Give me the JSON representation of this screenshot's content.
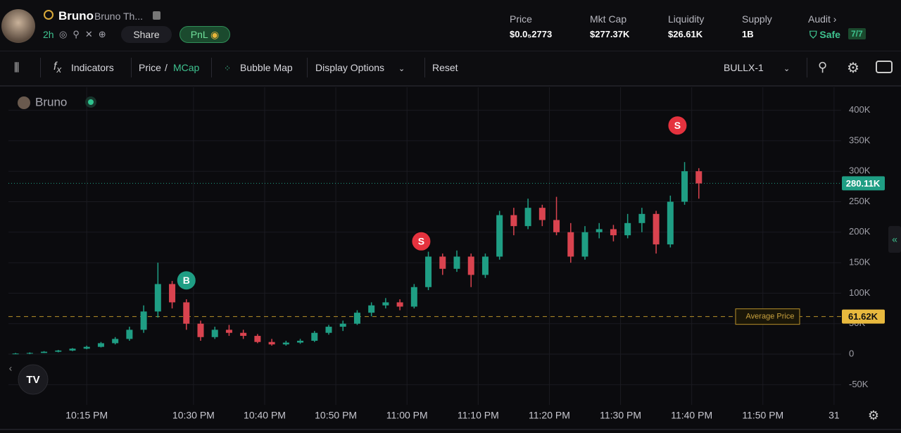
{
  "header": {
    "name": "Bruno",
    "full_name": "Bruno Th...",
    "age": "2h",
    "share": "Share",
    "pnl": "PnL"
  },
  "stats": [
    {
      "label": "Price",
      "value": "$0.0₅2773"
    },
    {
      "label": "Mkt Cap",
      "value": "$277.37K"
    },
    {
      "label": "Liquidity",
      "value": "$26.61K"
    },
    {
      "label": "Supply",
      "value": "1B"
    }
  ],
  "audit": {
    "label": "Audit",
    "status": "Safe",
    "score": "7/7"
  },
  "toolbar": {
    "indicators": "Indicators",
    "price": "Price",
    "separator": "/",
    "mcap": "MCap",
    "bubble_map": "Bubble Map",
    "display_options": "Display Options",
    "reset": "Reset",
    "source": "BULLX-1"
  },
  "chart_data": {
    "type": "candlestick",
    "legend": "Bruno",
    "up_color": "#1f9e84",
    "down_color": "#d9434f",
    "grid": true,
    "x": [
      "10:05 PM",
      "10:07 PM",
      "10:09 PM",
      "10:11 PM",
      "10:13 PM",
      "10:15 PM",
      "10:17 PM",
      "10:19 PM",
      "10:21 PM",
      "10:23 PM",
      "10:25 PM",
      "10:27 PM",
      "10:29 PM",
      "10:31 PM",
      "10:33 PM",
      "10:35 PM",
      "10:37 PM",
      "10:39 PM",
      "10:41 PM",
      "10:43 PM",
      "10:45 PM",
      "10:47 PM",
      "10:49 PM",
      "10:51 PM",
      "10:53 PM",
      "10:55 PM",
      "10:57 PM",
      "10:59 PM",
      "11:01 PM",
      "11:03 PM",
      "11:05 PM",
      "11:07 PM",
      "11:09 PM",
      "11:11 PM",
      "11:13 PM",
      "11:15 PM",
      "11:17 PM",
      "11:19 PM",
      "11:21 PM",
      "11:23 PM",
      "11:25 PM",
      "11:27 PM",
      "11:29 PM",
      "11:31 PM",
      "11:33 PM",
      "11:35 PM",
      "11:37 PM",
      "11:39 PM",
      "11:41 PM"
    ],
    "open": [
      0,
      1000,
      2000,
      4000,
      6000,
      9000,
      12000,
      18000,
      25000,
      40000,
      70000,
      115000,
      85000,
      50000,
      28000,
      40000,
      35000,
      30000,
      20000,
      16000,
      19000,
      22000,
      35000,
      45000,
      50000,
      68000,
      80000,
      85000,
      78000,
      110000,
      160000,
      140000,
      160000,
      130000,
      160000,
      228000,
      210000,
      240000,
      220000,
      200000,
      160000,
      200000,
      205000,
      195000,
      215000,
      230000,
      180000,
      250000,
      300000
    ],
    "high": [
      2000,
      3000,
      5000,
      7000,
      10000,
      14000,
      20000,
      28000,
      45000,
      80000,
      150000,
      120000,
      90000,
      55000,
      45000,
      48000,
      40000,
      33000,
      25000,
      22000,
      25000,
      38000,
      48000,
      55000,
      72000,
      85000,
      92000,
      90000,
      115000,
      168000,
      165000,
      170000,
      165000,
      165000,
      235000,
      240000,
      255000,
      245000,
      258000,
      215000,
      210000,
      215000,
      212000,
      230000,
      240000,
      235000,
      260000,
      315000,
      305000
    ],
    "low": [
      0,
      0,
      2000,
      3000,
      5000,
      8000,
      11000,
      16000,
      22000,
      35000,
      60000,
      75000,
      40000,
      22000,
      25000,
      30000,
      25000,
      18000,
      14000,
      14000,
      17000,
      20000,
      32000,
      38000,
      48000,
      62000,
      75000,
      72000,
      75000,
      105000,
      130000,
      135000,
      110000,
      125000,
      155000,
      195000,
      205000,
      210000,
      195000,
      150000,
      155000,
      190000,
      185000,
      190000,
      200000,
      165000,
      175000,
      245000,
      255000
    ],
    "close": [
      1000,
      2000,
      4000,
      6000,
      9000,
      12000,
      18000,
      25000,
      40000,
      70000,
      115000,
      85000,
      50000,
      28000,
      40000,
      35000,
      30000,
      20000,
      16000,
      19000,
      22000,
      35000,
      45000,
      50000,
      68000,
      80000,
      85000,
      78000,
      110000,
      160000,
      140000,
      160000,
      130000,
      160000,
      228000,
      210000,
      240000,
      220000,
      200000,
      160000,
      200000,
      205000,
      195000,
      215000,
      230000,
      180000,
      250000,
      300000,
      280000
    ],
    "ylim": [
      -75000,
      430000
    ],
    "yticks": [
      {
        "value": -50000,
        "label": "-50K"
      },
      0,
      {
        "value": 50000,
        "label": "50K"
      },
      {
        "value": 100000,
        "label": "100K"
      },
      {
        "value": 150000,
        "label": "150K"
      },
      {
        "value": 200000,
        "label": "200K"
      },
      {
        "value": 250000,
        "label": "250K"
      },
      {
        "value": 300000,
        "label": "300K"
      },
      {
        "value": 350000,
        "label": "350K"
      },
      {
        "value": 400000,
        "label": "400K"
      }
    ],
    "xlim": [
      "10:04 PM",
      "12:01 AM"
    ],
    "xticks": [
      "10:15 PM",
      "10:30 PM",
      "10:40 PM",
      "10:50 PM",
      "11:00 PM",
      "11:10 PM",
      "11:20 PM",
      "11:30 PM",
      "11:40 PM",
      "11:50 PM",
      {
        "value": "12:00 AM",
        "label": "31"
      }
    ],
    "current_price": {
      "value": 280110,
      "label": "280.11K"
    },
    "average_price": {
      "name": "Average Price",
      "value": 61620,
      "label": "61.62K"
    },
    "markers": [
      {
        "label": "B",
        "x": "10:29 PM",
        "y": 121000,
        "color": "#1f9e84"
      },
      {
        "label": "S",
        "x": "11:02 PM",
        "y": 185000,
        "color": "#e5323e"
      },
      {
        "label": "S",
        "x": "11:38 PM",
        "y": 375000,
        "color": "#e5323e"
      }
    ]
  }
}
